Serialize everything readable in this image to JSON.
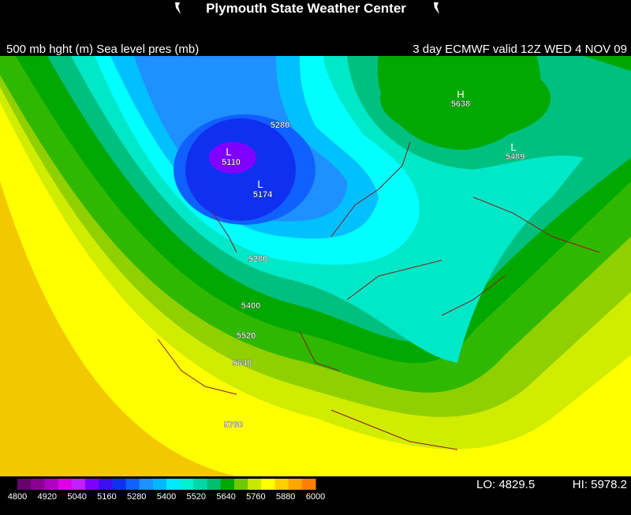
{
  "header": {
    "title": "Plymouth State Weather Center",
    "subtitle_left": "500 mb hght (m) Sea level pres (mb)",
    "subtitle_right": "3 day ECMWF valid 12Z WED 4 NOV 09"
  },
  "contour_labels": [
    "5280",
    "5110",
    "5174",
    "5280",
    "5400",
    "5520",
    "5640",
    "5760",
    "5638",
    "5489"
  ],
  "centers": [
    "L",
    "L",
    "H",
    "L"
  ],
  "legend": {
    "labels": [
      4800,
      4920,
      5040,
      5160,
      5280,
      5400,
      5520,
      5640,
      5760,
      5880,
      6000
    ],
    "colors": [
      "#66006f",
      "#8a0092",
      "#b000c0",
      "#e000e8",
      "#c020ff",
      "#8000ff",
      "#3c10f0",
      "#1030f0",
      "#1060ff",
      "#1e90ff",
      "#00b8ff",
      "#00e8ff",
      "#00f0d0",
      "#00d8a8",
      "#00c070",
      "#00a800",
      "#70c800",
      "#c8e800",
      "#ffff00",
      "#ffd000",
      "#ffa800",
      "#ff8000"
    ]
  },
  "extremes": {
    "lo": "LO: 4829.5",
    "hi": "HI: 5978.2"
  }
}
